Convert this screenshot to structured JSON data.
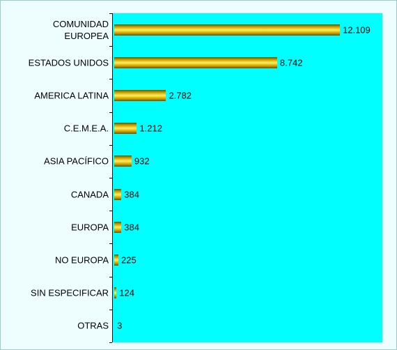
{
  "chart_data": {
    "type": "barh",
    "categories": [
      "COMUNIDAD EUROPEA",
      "ESTADOS UNIDOS",
      "AMERICA LATINA",
      "C.E.M.E.A.",
      "ASIA PACÍFICO",
      "CANADA",
      "EUROPA",
      "NO EUROPA",
      "SIN ESPECIFICAR",
      "OTRAS"
    ],
    "values": [
      12109,
      8742,
      2782,
      1212,
      932,
      384,
      384,
      225,
      124,
      3
    ],
    "value_labels": [
      "12.109",
      "8.742",
      "2.782",
      "1.212",
      "932",
      "384",
      "384",
      "225",
      "124",
      "3"
    ],
    "color": "#d4a800"
  }
}
